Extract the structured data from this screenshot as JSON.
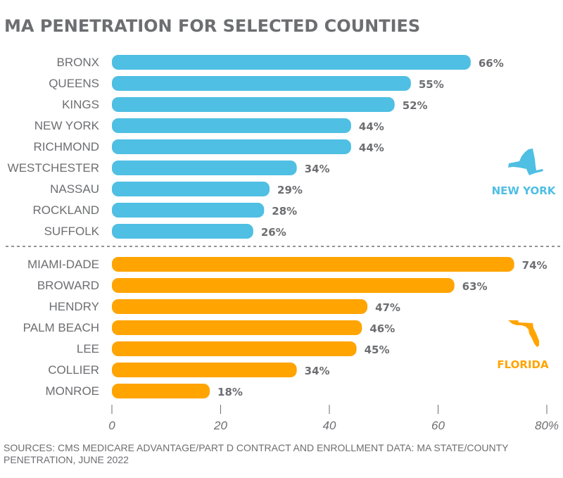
{
  "chart_data": {
    "type": "bar",
    "orientation": "horizontal",
    "title": "MA PENETRATION FOR SELECTED COUNTIES",
    "xlim": [
      0,
      80
    ],
    "xticks": [
      "0",
      "20",
      "40",
      "60",
      "80%"
    ],
    "grid": false,
    "groups": [
      {
        "name": "NEW YORK",
        "color": "#4fbfe3",
        "categories": [
          "BRONX",
          "QUEENS",
          "KINGS",
          "NEW YORK",
          "RICHMOND",
          "WESTCHESTER",
          "NASSAU",
          "ROCKLAND",
          "SUFFOLK"
        ],
        "values": [
          66,
          55,
          52,
          44,
          44,
          34,
          29,
          28,
          26
        ]
      },
      {
        "name": "FLORIDA",
        "color": "#ffa400",
        "categories": [
          "MIAMI-DADE",
          "BROWARD",
          "HENDRY",
          "PALM BEACH",
          "LEE",
          "COLLIER",
          "MONROE"
        ],
        "values": [
          74,
          63,
          47,
          46,
          45,
          34,
          18
        ]
      }
    ],
    "source": [
      "SOURCES: CMS MEDICARE ADVANTAGE/PART D CONTRACT AND ENROLLMENT DATA: MA STATE/COUNTY",
      "PENETRATION, JUNE 2022"
    ]
  }
}
